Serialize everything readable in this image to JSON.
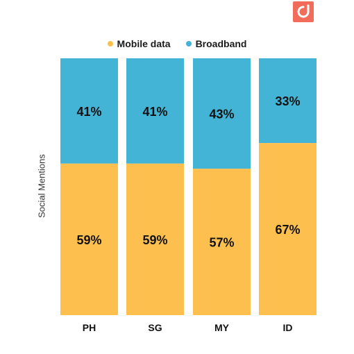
{
  "brand": {
    "logo_icon": "brand-logo-icon",
    "color": "#f26c5b"
  },
  "legend": {
    "items": [
      {
        "label": "Mobile data",
        "color": "#fdc04f"
      },
      {
        "label": "Broadband",
        "color": "#43b4d6"
      }
    ]
  },
  "chart_data": {
    "type": "bar",
    "stacked": true,
    "percent": true,
    "categories": [
      "PH",
      "SG",
      "MY",
      "ID"
    ],
    "series": [
      {
        "name": "Mobile data",
        "values": [
          59,
          59,
          57,
          67
        ],
        "labels": [
          "59%",
          "59%",
          "57%",
          "67%"
        ],
        "color": "#fdc04f"
      },
      {
        "name": "Broadband",
        "values": [
          41,
          41,
          43,
          33
        ],
        "labels": [
          "41%",
          "41%",
          "43%",
          "33%"
        ],
        "color": "#43b4d6"
      }
    ],
    "ylabel": "Social Mentions",
    "xlabel": "",
    "ylim": [
      0,
      100
    ],
    "grid": false,
    "legend_position": "top-center"
  }
}
